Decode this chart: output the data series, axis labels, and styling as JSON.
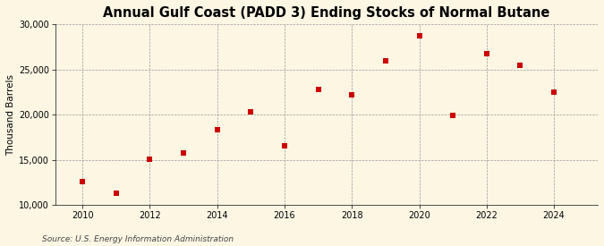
{
  "title": "Annual Gulf Coast (PADD 3) Ending Stocks of Normal Butane",
  "ylabel": "Thousand Barrels",
  "source": "Source: U.S. Energy Information Administration",
  "years": [
    2010,
    2011,
    2012,
    2013,
    2014,
    2015,
    2016,
    2017,
    2018,
    2019,
    2020,
    2021,
    2022,
    2023,
    2024
  ],
  "values": [
    12600,
    11300,
    15100,
    15800,
    18300,
    20300,
    16600,
    22800,
    22200,
    26000,
    28700,
    19900,
    26800,
    25500,
    22500
  ],
  "ylim": [
    10000,
    30000
  ],
  "yticks": [
    10000,
    15000,
    20000,
    25000,
    30000
  ],
  "xticks": [
    2010,
    2012,
    2014,
    2016,
    2018,
    2020,
    2022,
    2024
  ],
  "xlim": [
    2009.2,
    2025.3
  ],
  "marker_color": "#cc0000",
  "marker": "s",
  "marker_size": 4,
  "bg_color": "#fdf6e3",
  "grid_color": "#999999",
  "title_fontsize": 10.5,
  "label_fontsize": 7.5,
  "tick_fontsize": 7,
  "source_fontsize": 6.5
}
